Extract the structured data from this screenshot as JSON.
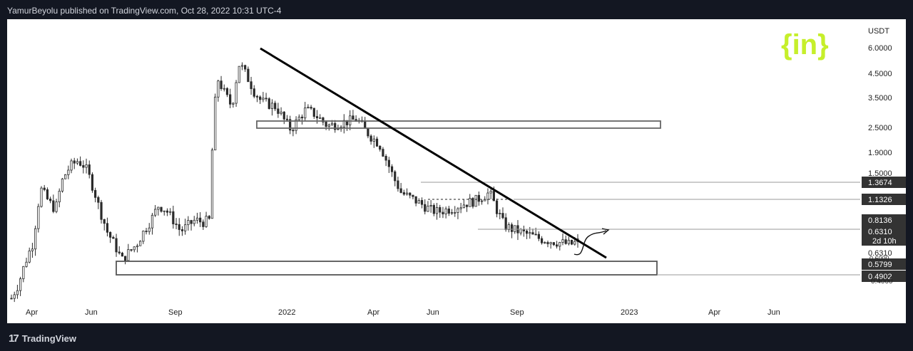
{
  "header": {
    "publisher_line": "YamurBeyolu published on TradingView.com, Oct 28, 2022 10:31 UTC-4"
  },
  "footer": {
    "brand": "TradingView",
    "logo_icon": "tradingview-logo-icon"
  },
  "watermark": {
    "text": "{in}",
    "color": "#c6ef2b"
  },
  "colors": {
    "candles": "#2a2a2a",
    "trendline": "#000000",
    "box_border": "#555555",
    "level_line": "#888888",
    "label_bg": "#333333",
    "panel_bg": "#ffffff",
    "page_bg": "#131722"
  },
  "chart_data": {
    "type": "candlestick",
    "title": "",
    "xlabel": "",
    "ylabel": "USDT",
    "y_scale": "log",
    "y_ticks": [
      "6.0000",
      "4.5000",
      "3.5000",
      "2.5000",
      "1.9000",
      "1.5000"
    ],
    "x_ticks": [
      "Apr",
      "Jun",
      "Sep",
      "2022",
      "Apr",
      "Jun",
      "Sep",
      "2023",
      "Apr",
      "Jun"
    ],
    "price_labels": [
      "1.3674",
      "1.1326",
      "0.8136",
      "0.6310",
      "0.5799",
      "0.4902"
    ],
    "countdown_label": "2d 10h",
    "partial_labels": [
      "0.6310",
      "0.6000",
      "0.4000"
    ],
    "series": [
      {
        "values": [
          0.32,
          0.38,
          0.5,
          0.62,
          1.15,
          1.0,
          0.9,
          1.3,
          1.5,
          1.6,
          1.5,
          1.2,
          0.9,
          0.7,
          0.6,
          0.5,
          0.55,
          0.6,
          0.7,
          0.8,
          0.95,
          0.9,
          0.8,
          0.7,
          0.75,
          0.8,
          0.78,
          0.8,
          4.2,
          3.5,
          3.0,
          5.0,
          4.3,
          3.6,
          3.2,
          3.1,
          3.0,
          2.6,
          2.3,
          2.6,
          2.9,
          2.8,
          2.6,
          2.4,
          2.45,
          2.5,
          2.55,
          2.6,
          2.3,
          2.1,
          1.95,
          1.6,
          1.3,
          1.1,
          1.05,
          1.0,
          0.95,
          0.9,
          0.88,
          0.9,
          0.92,
          0.95,
          0.98,
          1.0,
          1.05,
          1.1,
          0.9,
          0.75,
          0.72,
          0.7,
          0.68,
          0.66,
          0.64,
          0.63,
          0.62,
          0.61,
          0.6,
          0.62
        ]
      }
    ],
    "grid": false,
    "legend": "none"
  }
}
